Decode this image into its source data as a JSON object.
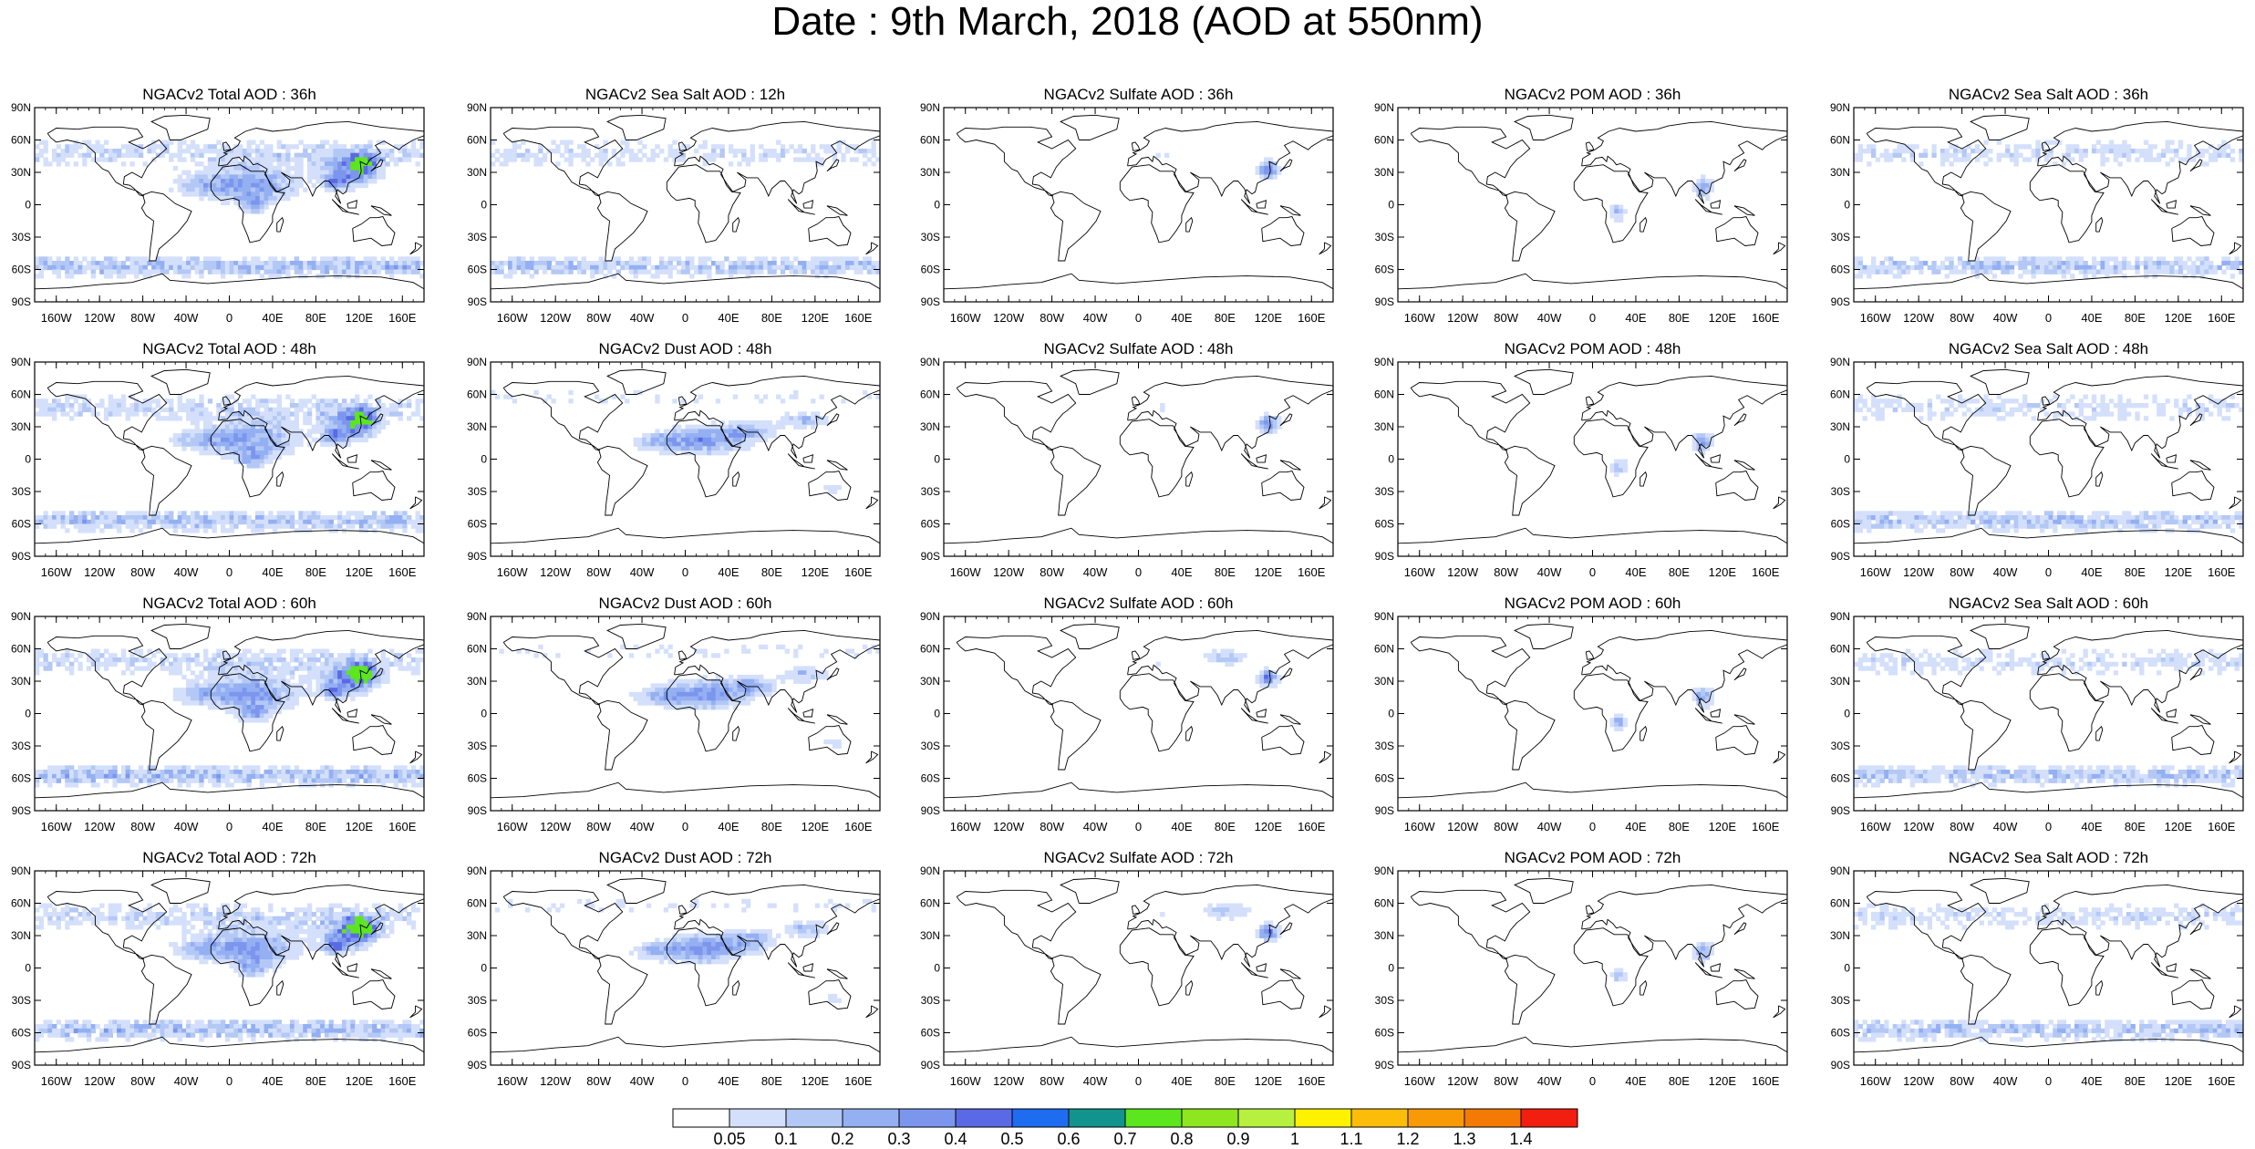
{
  "title": "Date : 9th March, 2018 (AOD at 550nm)",
  "panels": [
    [
      "NGACv2 Total AOD : 36h",
      "NGACv2 Sea Salt  AOD : 12h",
      "NGACv2 Sulfate AOD : 36h",
      "NGACv2 POM AOD : 36h",
      "NGACv2 Sea Salt AOD : 36h"
    ],
    [
      "NGACv2 Total AOD : 48h",
      "NGACv2 Dust AOD : 48h",
      "NGACv2 Sulfate AOD : 48h",
      "NGACv2 POM AOD : 48h",
      "NGACv2 Sea Salt AOD : 48h"
    ],
    [
      "NGACv2 Total AOD : 60h",
      "NGACv2 Dust AOD : 60h",
      "NGACv2 Sulfate AOD : 60h",
      "NGACv2 POM AOD : 60h",
      "NGACv2 Sea Salt AOD : 60h"
    ],
    [
      "NGACv2 Total AOD : 72h",
      "NGACv2 Dust AOD : 72h",
      "NGACv2 Sulfate AOD : 72h",
      "NGACv2 POM AOD : 72h",
      "NGACv2 Sea Salt  AOD : 72h"
    ]
  ],
  "lat_labels": [
    "90N",
    "60N",
    "30N",
    "0",
    "30S",
    "60S",
    "90S"
  ],
  "lon_labels": [
    "160W",
    "120W",
    "80W",
    "40W",
    "0",
    "40E",
    "80E",
    "120E",
    "160E"
  ],
  "lon_values": [
    -160,
    -120,
    -80,
    -40,
    0,
    40,
    80,
    120,
    160
  ],
  "colorbar": {
    "labels": [
      "0.05",
      "0.1",
      "0.2",
      "0.3",
      "0.4",
      "0.5",
      "0.6",
      "0.7",
      "0.8",
      "0.9",
      "1",
      "1.1",
      "1.2",
      "1.3",
      "1.4"
    ],
    "colors": [
      "#ffffff",
      "#d4e0fb",
      "#b4c8f6",
      "#94b0f2",
      "#7c96ee",
      "#5a6ae6",
      "#1e6cf0",
      "#13938d",
      "#5ce61e",
      "#8ee61e",
      "#b8f040",
      "#fff200",
      "#fbbd0a",
      "#f79a05",
      "#f47a05",
      "#f21e10"
    ]
  }
}
